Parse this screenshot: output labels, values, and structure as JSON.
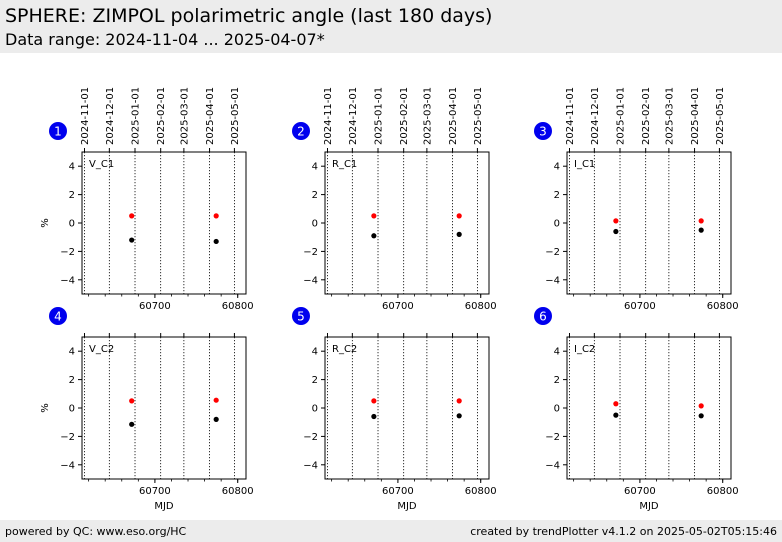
{
  "header": {
    "title": "SPHERE: ZIMPOL polarimetric angle (last 180 days)",
    "subtitle": "Data range: 2024-11-04 ... 2025-04-07*"
  },
  "footer": {
    "left": "powered by QC: www.eso.org/HC",
    "right": "created by trendPlotter v4.1.2 on 2025-05-02T05:15:46"
  },
  "colors": {
    "background": "#ffffff",
    "band": "#ececec",
    "badge": "#0000ee",
    "series_red": "#ff0000",
    "series_black": "#000000"
  },
  "chart_data": [
    {
      "type": "scatter",
      "panel_number": "1",
      "label": "V_C1",
      "xlabel": "",
      "ylabel": "%",
      "xlim": [
        60612,
        60810
      ],
      "ylim": [
        -5,
        5
      ],
      "x_ticks": [
        60700,
        60800
      ],
      "y_ticks": [
        -4,
        -2,
        0,
        2,
        4
      ],
      "date_ticks": [
        "2024-11-01",
        "2024-12-01",
        "2025-01-01",
        "2025-02-01",
        "2025-03-01",
        "2025-04-01",
        "2025-05-01"
      ],
      "date_tick_mjd": [
        60615,
        60645,
        60676,
        60707,
        60735,
        60766,
        60796
      ],
      "grid": "vertical dotted at date ticks",
      "series": [
        {
          "color": "#ff0000",
          "x": [
            60672,
            60774
          ],
          "y": [
            0.5,
            0.5
          ]
        },
        {
          "color": "#000000",
          "x": [
            60672,
            60774
          ],
          "y": [
            -1.2,
            -1.3
          ]
        }
      ]
    },
    {
      "type": "scatter",
      "panel_number": "2",
      "label": "R_C1",
      "xlabel": "",
      "ylabel": "",
      "xlim": [
        60612,
        60810
      ],
      "ylim": [
        -5,
        5
      ],
      "x_ticks": [
        60700,
        60800
      ],
      "y_ticks": [
        -4,
        -2,
        0,
        2,
        4
      ],
      "date_ticks": [
        "2024-11-01",
        "2024-12-01",
        "2025-01-01",
        "2025-02-01",
        "2025-03-01",
        "2025-04-01",
        "2025-05-01"
      ],
      "date_tick_mjd": [
        60615,
        60645,
        60676,
        60707,
        60735,
        60766,
        60796
      ],
      "grid": "vertical dotted at date ticks",
      "series": [
        {
          "color": "#ff0000",
          "x": [
            60671,
            60774
          ],
          "y": [
            0.5,
            0.5
          ]
        },
        {
          "color": "#000000",
          "x": [
            60671,
            60774
          ],
          "y": [
            -0.9,
            -0.8
          ]
        }
      ]
    },
    {
      "type": "scatter",
      "panel_number": "3",
      "label": "I_C1",
      "xlabel": "",
      "ylabel": "",
      "xlim": [
        60612,
        60810
      ],
      "ylim": [
        -5,
        5
      ],
      "x_ticks": [
        60700,
        60800
      ],
      "y_ticks": [
        -4,
        -2,
        0,
        2,
        4
      ],
      "date_ticks": [
        "2024-11-01",
        "2024-12-01",
        "2025-01-01",
        "2025-02-01",
        "2025-03-01",
        "2025-04-01",
        "2025-05-01"
      ],
      "date_tick_mjd": [
        60615,
        60645,
        60676,
        60707,
        60735,
        60766,
        60796
      ],
      "grid": "vertical dotted at date ticks",
      "series": [
        {
          "color": "#ff0000",
          "x": [
            60671,
            60774
          ],
          "y": [
            0.15,
            0.15
          ]
        },
        {
          "color": "#000000",
          "x": [
            60671,
            60774
          ],
          "y": [
            -0.6,
            -0.5
          ]
        }
      ]
    },
    {
      "type": "scatter",
      "panel_number": "4",
      "label": "V_C2",
      "xlabel": "MJD",
      "ylabel": "%",
      "xlim": [
        60612,
        60810
      ],
      "ylim": [
        -5,
        5
      ],
      "x_ticks": [
        60700,
        60800
      ],
      "y_ticks": [
        -4,
        -2,
        0,
        2,
        4
      ],
      "date_ticks": [],
      "date_tick_mjd": [
        60615,
        60645,
        60676,
        60707,
        60735,
        60766,
        60796
      ],
      "grid": "vertical dotted at date ticks",
      "series": [
        {
          "color": "#ff0000",
          "x": [
            60672,
            60774
          ],
          "y": [
            0.5,
            0.55
          ]
        },
        {
          "color": "#000000",
          "x": [
            60672,
            60774
          ],
          "y": [
            -1.15,
            -0.8
          ]
        }
      ]
    },
    {
      "type": "scatter",
      "panel_number": "5",
      "label": "R_C2",
      "xlabel": "MJD",
      "ylabel": "",
      "xlim": [
        60612,
        60810
      ],
      "ylim": [
        -5,
        5
      ],
      "x_ticks": [
        60700,
        60800
      ],
      "y_ticks": [
        -4,
        -2,
        0,
        2,
        4
      ],
      "date_ticks": [],
      "date_tick_mjd": [
        60615,
        60645,
        60676,
        60707,
        60735,
        60766,
        60796
      ],
      "grid": "vertical dotted at date ticks",
      "series": [
        {
          "color": "#ff0000",
          "x": [
            60671,
            60774
          ],
          "y": [
            0.5,
            0.5
          ]
        },
        {
          "color": "#000000",
          "x": [
            60671,
            60774
          ],
          "y": [
            -0.6,
            -0.55
          ]
        }
      ]
    },
    {
      "type": "scatter",
      "panel_number": "6",
      "label": "I_C2",
      "xlabel": "MJD",
      "ylabel": "",
      "xlim": [
        60612,
        60810
      ],
      "ylim": [
        -5,
        5
      ],
      "x_ticks": [
        60700,
        60800
      ],
      "y_ticks": [
        -4,
        -2,
        0,
        2,
        4
      ],
      "date_ticks": [],
      "date_tick_mjd": [
        60615,
        60645,
        60676,
        60707,
        60735,
        60766,
        60796
      ],
      "grid": "vertical dotted at date ticks",
      "series": [
        {
          "color": "#ff0000",
          "x": [
            60671,
            60774
          ],
          "y": [
            0.3,
            0.15
          ]
        },
        {
          "color": "#000000",
          "x": [
            60671,
            60774
          ],
          "y": [
            -0.5,
            -0.55
          ]
        }
      ]
    }
  ]
}
